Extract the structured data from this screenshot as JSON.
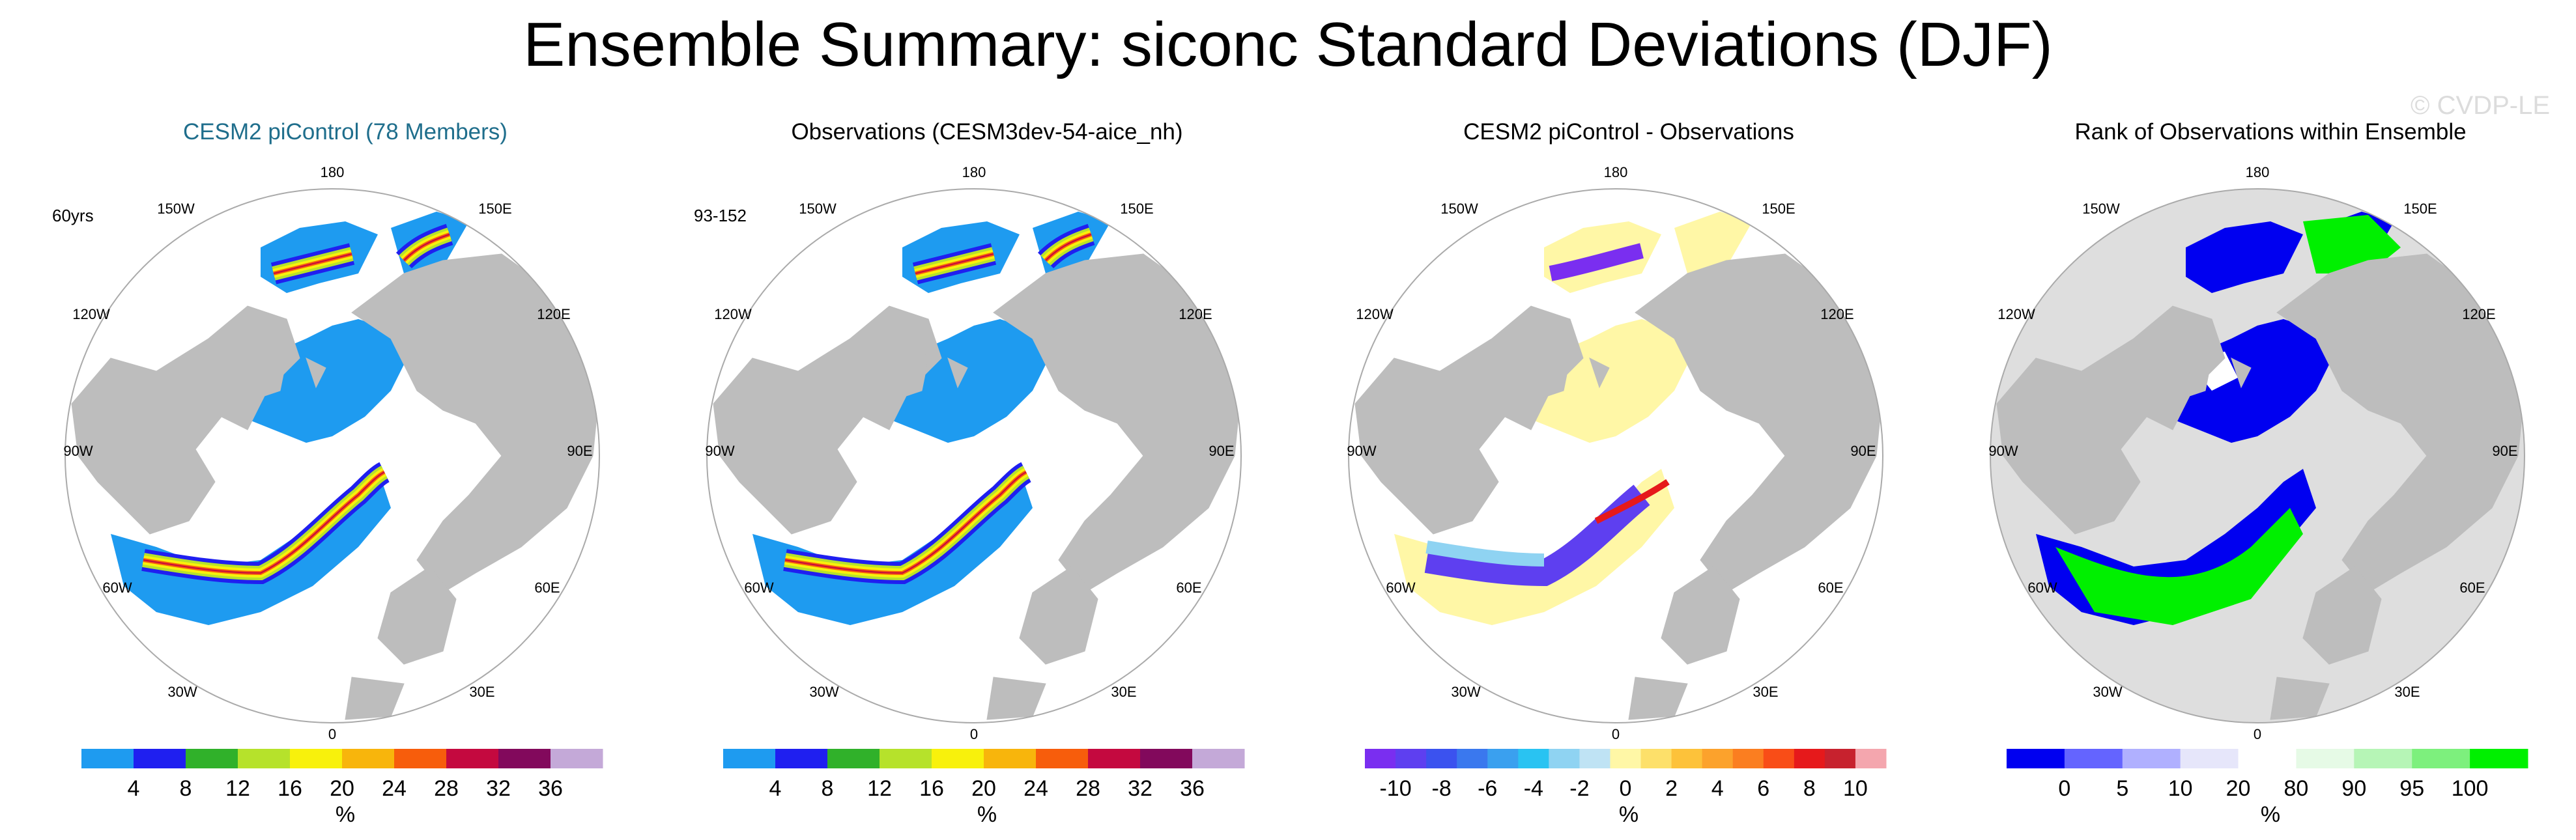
{
  "title": "Ensemble Summary: siconc Standard Deviations (DJF)",
  "watermark": "© CVDP-LE",
  "colors": {
    "land": "#bdbdbd",
    "ocean_edge": "#aaaaaa",
    "title_accent": "#1f6e8c",
    "std_palette": [
      "#1e9bf0",
      "#1f1ff0",
      "#30b12a",
      "#b6e22b",
      "#f8f10c",
      "#f8b50c",
      "#f75d0c",
      "#c4093f",
      "#82095c",
      "#c4a9d8"
    ],
    "diff_palette": [
      "#7a2ef0",
      "#5e3ff0",
      "#3b52ef",
      "#3a78ee",
      "#3aa0ef",
      "#29c3f2",
      "#8fd3f2",
      "#bfe3f4",
      "#fff7a6",
      "#fde06a",
      "#fdc23a",
      "#fca22c",
      "#fb7e20",
      "#f94d17",
      "#e6191b",
      "#c7222e",
      "#f4a6ae"
    ],
    "rank_palette": [
      "#0000f0",
      "#6464ff",
      "#b0b0ff",
      "#e6e6fa",
      "#ffffff",
      "#e6fae6",
      "#b6f5b6",
      "#7df07d",
      "#00f000"
    ]
  },
  "panels": [
    {
      "title": "CESM2 piControl (78 Members)",
      "corner_label": "60yrs",
      "style": "std",
      "colorbar": {
        "unit": "%",
        "ticks": [
          "4",
          "8",
          "12",
          "16",
          "20",
          "24",
          "28",
          "32",
          "36"
        ]
      }
    },
    {
      "title": "Observations (CESM3dev-54-aice_nh)",
      "corner_label": "93-152",
      "style": "std",
      "colorbar": {
        "unit": "%",
        "ticks": [
          "4",
          "8",
          "12",
          "16",
          "20",
          "24",
          "28",
          "32",
          "36"
        ]
      }
    },
    {
      "title": "CESM2 piControl - Observations",
      "corner_label": "",
      "style": "diff",
      "colorbar": {
        "unit": "%",
        "ticks": [
          "-10",
          "-8",
          "-6",
          "-4",
          "-2",
          "0",
          "2",
          "4",
          "6",
          "8",
          "10"
        ]
      }
    },
    {
      "title": "Rank of Observations within Ensemble",
      "corner_label": "",
      "style": "rank",
      "colorbar": {
        "unit": "%",
        "ticks": [
          "0",
          "5",
          "10",
          "20",
          "80",
          "90",
          "95",
          "100"
        ]
      }
    }
  ],
  "longitude_labels": [
    "180",
    "150E",
    "120E",
    "90E",
    "60E",
    "30E",
    "0",
    "30W",
    "60W",
    "90W",
    "120W",
    "150W"
  ]
}
